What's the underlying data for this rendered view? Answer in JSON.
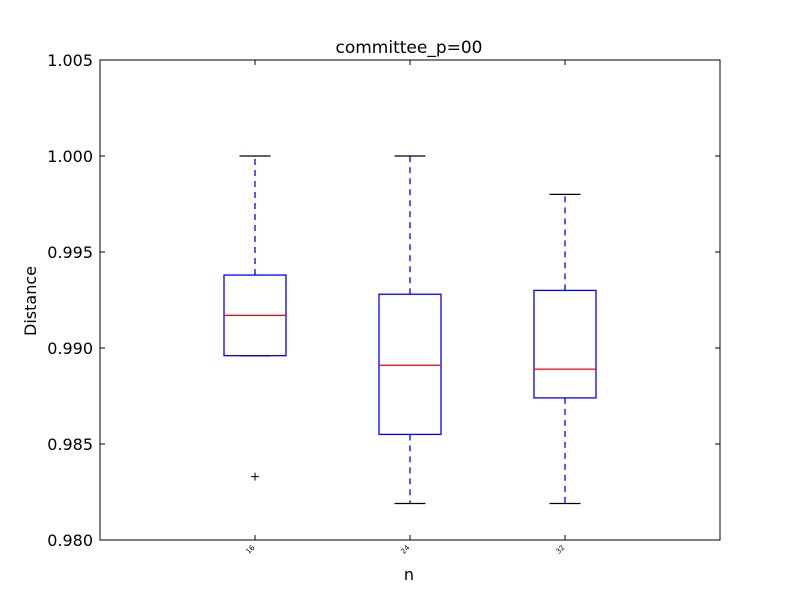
{
  "chart_data": {
    "type": "box",
    "title": "committee_p=00",
    "xlabel": "n",
    "ylabel": "Distance",
    "ylim": [
      0.98,
      1.005
    ],
    "yticks": [
      0.98,
      0.985,
      0.99,
      0.995,
      1.0,
      1.005
    ],
    "ytick_labels": [
      "0.980",
      "0.985",
      "0.990",
      "0.995",
      "1.000",
      "1.005"
    ],
    "categories": [
      "16",
      "24",
      "32"
    ],
    "boxes": [
      {
        "category": "16",
        "whisker_low": 0.9896,
        "q1": 0.9896,
        "median": 0.9917,
        "q3": 0.9938,
        "whisker_high": 1.0,
        "outliers": [
          0.9833
        ]
      },
      {
        "category": "24",
        "whisker_low": 0.9819,
        "q1": 0.9855,
        "median": 0.9891,
        "q3": 0.9928,
        "whisker_high": 1.0,
        "outliers": []
      },
      {
        "category": "32",
        "whisker_low": 0.9819,
        "q1": 0.9874,
        "median": 0.9889,
        "q3": 0.993,
        "whisker_high": 0.998,
        "outliers": []
      }
    ],
    "grid": false,
    "colors": {
      "box": "#0000ff",
      "median": "#ff0000",
      "whisker": "#0000ff",
      "cap": "#000000",
      "outlier": "#000000"
    }
  }
}
